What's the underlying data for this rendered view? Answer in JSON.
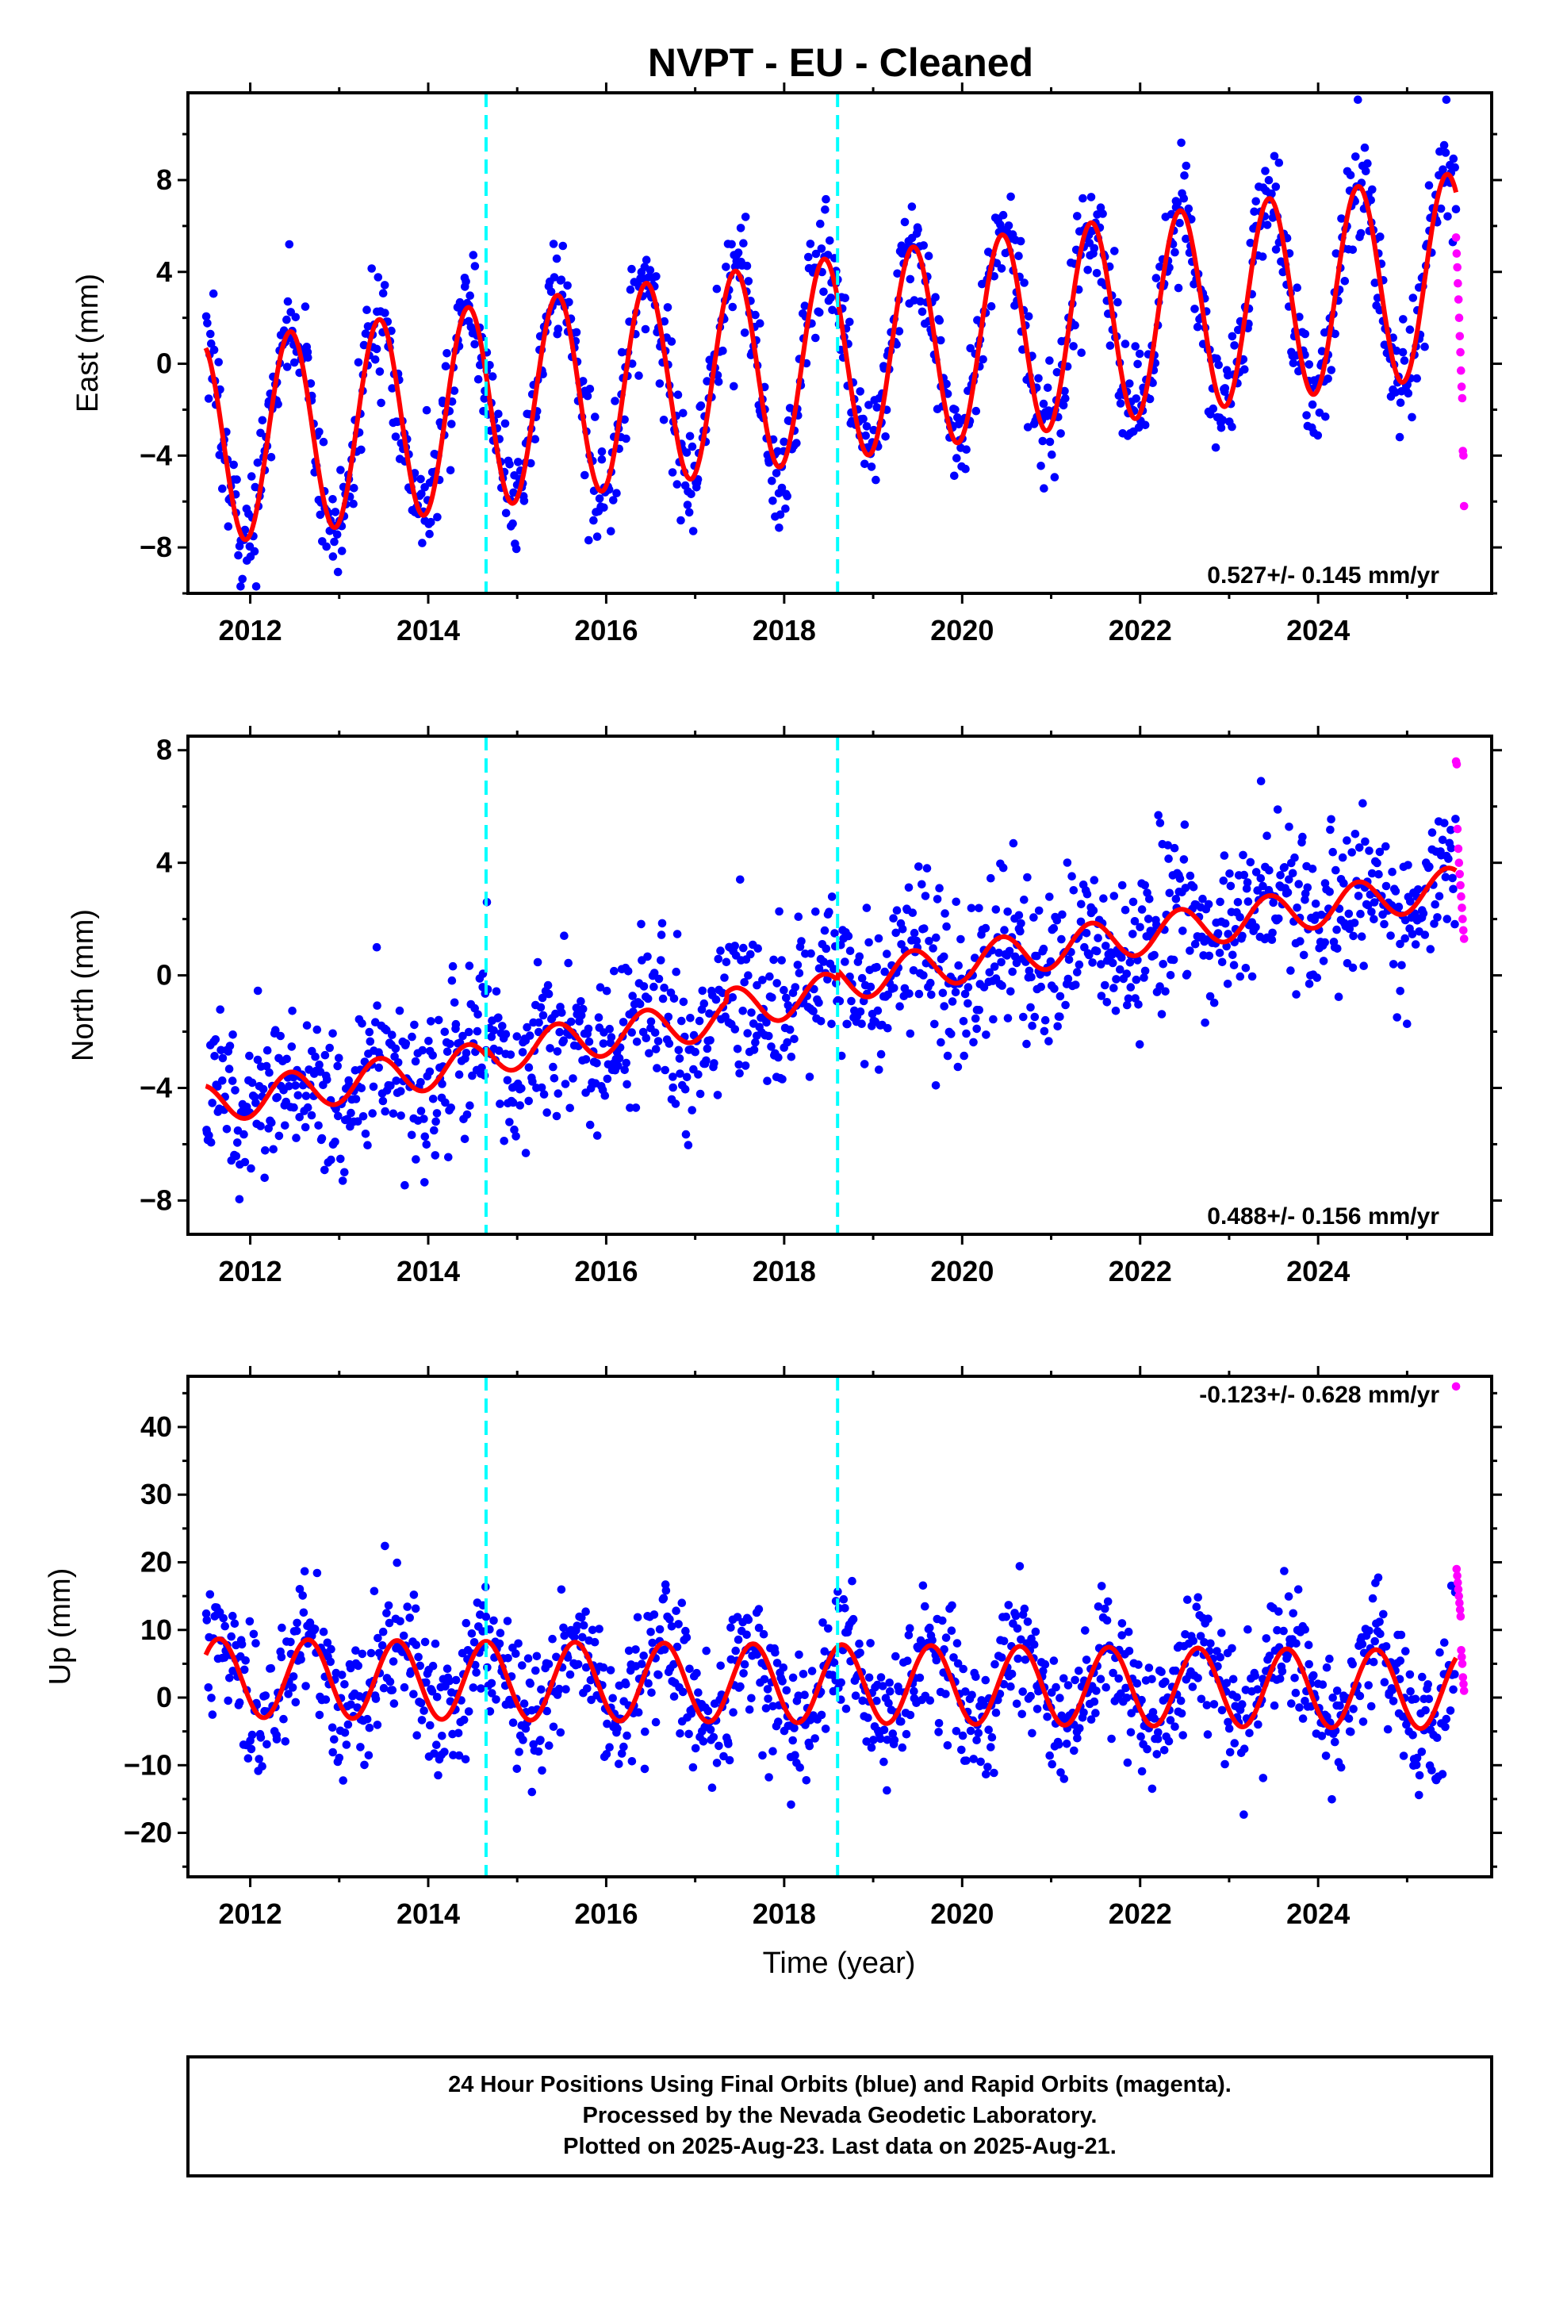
{
  "title": "NVPT  - EU - Cleaned",
  "colors": {
    "final": "#0000ff",
    "rapid": "#ff00ff",
    "model": "#ff0000",
    "breaks": "#00ffff"
  },
  "footer": {
    "line1": "24 Hour Positions Using Final Orbits (blue) and Rapid Orbits (magenta).",
    "line2": "Processed by the Nevada Geodetic Laboratory.",
    "line3": "Plotted on 2025-Aug-23. Last data on 2025-Aug-21."
  },
  "x_axis": {
    "title": "Time (year)",
    "tick_labels": [
      "2012",
      "2014",
      "2016",
      "2018",
      "2020",
      "2022",
      "2024"
    ],
    "xlim": [
      2011.3,
      2025.95
    ]
  },
  "chart_data": [
    {
      "type": "scatter",
      "component": "East",
      "ylabel": "East (mm)",
      "ylim": [
        -10,
        11.8
      ],
      "yticks": [
        -8,
        -4,
        0,
        4,
        8
      ],
      "rate_label": "0.527+/- 0.145 mm/yr",
      "model": {
        "intercept": -3.5,
        "ref_year": 2011.5,
        "trend_mm_per_yr": 0.527,
        "annual_amplitude": 4.4,
        "annual_peak": 0.45,
        "scatter": 1.3
      },
      "step_dates": [
        2014.65,
        2018.6
      ],
      "series": [
        {
          "name": "Final Orbits (blue)",
          "x_range": [
            2011.5,
            2025.55
          ]
        },
        {
          "name": "Rapid Orbits (magenta)",
          "x_range": [
            2025.55,
            2025.64
          ],
          "values": [
            5.5,
            4.8,
            4.2,
            3.5,
            2.8,
            2.0,
            1.2,
            0.5,
            -0.3,
            -1.0,
            -1.5,
            -3.8,
            -4.0,
            -6.2
          ]
        }
      ]
    },
    {
      "type": "scatter",
      "component": "North",
      "ylabel": "North (mm)",
      "ylim": [
        -9.2,
        8.5
      ],
      "yticks": [
        -8,
        -4,
        0,
        4,
        8
      ],
      "rate_label": "0.488+/- 0.156 mm/yr",
      "model": {
        "intercept": -4.6,
        "ref_year": 2011.5,
        "trend_mm_per_yr": 0.488,
        "annual_amplitude": 0.7,
        "annual_peak": 0.45,
        "scatter": 1.4
      },
      "step_dates": [
        2014.65,
        2018.6
      ],
      "series": [
        {
          "name": "Final Orbits (blue)",
          "x_range": [
            2011.5,
            2025.55
          ]
        },
        {
          "name": "Rapid Orbits (magenta)",
          "x_range": [
            2025.55,
            2025.64
          ],
          "values": [
            7.6,
            7.5,
            5.2,
            4.5,
            4.0,
            3.6,
            3.2,
            2.8,
            2.4,
            2.0,
            1.6,
            1.3
          ]
        }
      ]
    },
    {
      "type": "scatter",
      "component": "Up",
      "ylabel": "Up (mm)",
      "ylim": [
        -26.5,
        47.5
      ],
      "yticks": [
        -20,
        -10,
        0,
        10,
        20,
        30,
        40
      ],
      "rate_label": "-0.123+/- 0.628 mm/yr",
      "model": {
        "intercept": 2.9,
        "ref_year": 2011.5,
        "trend_mm_per_yr": -0.123,
        "annual_amplitude": 5.8,
        "annual_peak": 0.65,
        "scatter": 4.8
      },
      "step_dates": [
        2014.65,
        2018.6
      ],
      "series": [
        {
          "name": "Final Orbits (blue)",
          "x_range": [
            2011.5,
            2025.55
          ]
        },
        {
          "name": "Rapid Orbits (magenta)",
          "x_range": [
            2025.55,
            2025.64
          ],
          "values": [
            46,
            19,
            18,
            17,
            16,
            15,
            14,
            13,
            12,
            7,
            6,
            5,
            3,
            2,
            1
          ]
        }
      ]
    }
  ]
}
